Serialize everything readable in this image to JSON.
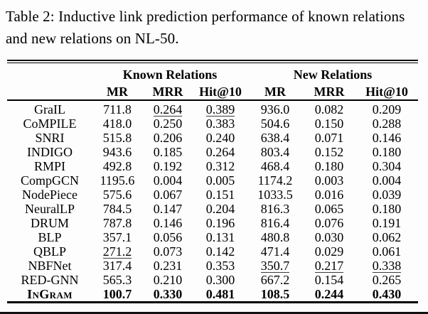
{
  "caption": "Table 2: Inductive link prediction performance of known relations and new relations on NL-50.",
  "colors": {
    "text": "#000000",
    "rule": "#000000",
    "underline": "#3c3c3c",
    "background": "#fdfdfd"
  },
  "table": {
    "col_groups": [
      {
        "label": "Known Relations"
      },
      {
        "label": "New Relations"
      }
    ],
    "metric_headers": [
      "MR",
      "MRR",
      "Hit@10",
      "MR",
      "MRR",
      "Hit@10"
    ],
    "rows": [
      {
        "method": "GraIL",
        "cells": [
          "711.8",
          "0.264",
          "0.389",
          "936.0",
          "0.082",
          "0.209"
        ],
        "underline": [
          1,
          2
        ],
        "bold": false,
        "smallcaps": false
      },
      {
        "method": "CoMPILE",
        "cells": [
          "418.0",
          "0.250",
          "0.383",
          "504.6",
          "0.150",
          "0.288"
        ],
        "underline": [],
        "bold": false,
        "smallcaps": false
      },
      {
        "method": "SNRI",
        "cells": [
          "515.8",
          "0.206",
          "0.240",
          "638.4",
          "0.071",
          "0.146"
        ],
        "underline": [],
        "bold": false,
        "smallcaps": false
      },
      {
        "method": "INDIGO",
        "cells": [
          "943.6",
          "0.185",
          "0.264",
          "803.4",
          "0.152",
          "0.180"
        ],
        "underline": [],
        "bold": false,
        "smallcaps": false
      },
      {
        "method": "RMPI",
        "cells": [
          "492.8",
          "0.192",
          "0.312",
          "468.4",
          "0.180",
          "0.304"
        ],
        "underline": [],
        "bold": false,
        "smallcaps": false
      },
      {
        "method": "CompGCN",
        "cells": [
          "1195.6",
          "0.004",
          "0.005",
          "1174.2",
          "0.003",
          "0.004"
        ],
        "underline": [],
        "bold": false,
        "smallcaps": false
      },
      {
        "method": "NodePiece",
        "cells": [
          "575.6",
          "0.067",
          "0.151",
          "1033.5",
          "0.016",
          "0.039"
        ],
        "underline": [],
        "bold": false,
        "smallcaps": false
      },
      {
        "method": "NeuralLP",
        "cells": [
          "784.5",
          "0.147",
          "0.204",
          "816.3",
          "0.065",
          "0.180"
        ],
        "underline": [],
        "bold": false,
        "smallcaps": false
      },
      {
        "method": "DRUM",
        "cells": [
          "787.8",
          "0.146",
          "0.196",
          "816.4",
          "0.076",
          "0.191"
        ],
        "underline": [],
        "bold": false,
        "smallcaps": false
      },
      {
        "method": "BLP",
        "cells": [
          "357.1",
          "0.056",
          "0.131",
          "480.8",
          "0.030",
          "0.062"
        ],
        "underline": [],
        "bold": false,
        "smallcaps": false
      },
      {
        "method": "QBLP",
        "cells": [
          "271.2",
          "0.073",
          "0.142",
          "471.4",
          "0.029",
          "0.061"
        ],
        "underline": [
          0
        ],
        "bold": false,
        "smallcaps": false
      },
      {
        "method": "NBFNet",
        "cells": [
          "317.4",
          "0.231",
          "0.353",
          "350.7",
          "0.217",
          "0.338"
        ],
        "underline": [
          3,
          4,
          5
        ],
        "bold": false,
        "smallcaps": false
      },
      {
        "method": "RED-GNN",
        "cells": [
          "565.3",
          "0.210",
          "0.300",
          "667.2",
          "0.154",
          "0.265"
        ],
        "underline": [],
        "bold": false,
        "smallcaps": false
      },
      {
        "method": "InGram",
        "cells": [
          "100.7",
          "0.330",
          "0.481",
          "108.5",
          "0.244",
          "0.430"
        ],
        "underline": [],
        "bold": true,
        "smallcaps": true
      }
    ]
  }
}
